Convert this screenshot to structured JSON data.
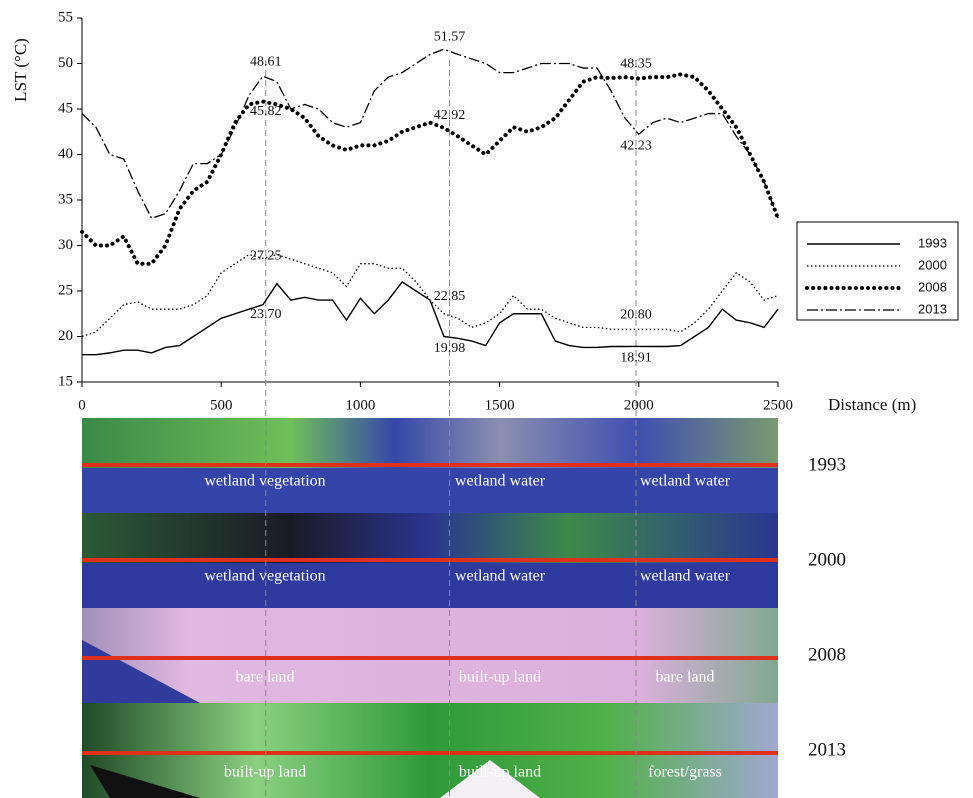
{
  "chart_data": {
    "type": "line",
    "y_label": "LST (°C)",
    "x_label": "Distance (m)",
    "x": [
      0,
      50,
      100,
      150,
      200,
      250,
      300,
      350,
      400,
      450,
      500,
      550,
      600,
      650,
      700,
      750,
      800,
      850,
      900,
      950,
      1000,
      1050,
      1100,
      1150,
      1200,
      1250,
      1300,
      1350,
      1400,
      1450,
      1500,
      1550,
      1600,
      1650,
      1700,
      1750,
      1800,
      1850,
      1900,
      1950,
      2000,
      2050,
      2100,
      2150,
      2200,
      2250,
      2300,
      2350,
      2400,
      2450,
      2500
    ],
    "series": [
      {
        "name": "1993",
        "color": "#000000",
        "values": [
          18,
          18,
          18.2,
          18.5,
          18.5,
          18.2,
          18.8,
          19,
          20,
          21,
          22,
          22.5,
          23,
          23.5,
          25.8,
          24,
          24.3,
          24,
          24,
          21.8,
          24.2,
          22.5,
          24,
          26,
          25,
          24,
          20,
          19.8,
          19.5,
          19,
          21.5,
          22.5,
          22.5,
          22.5,
          19.5,
          19,
          18.8,
          18.8,
          18.9,
          18.9,
          18.91,
          18.9,
          18.9,
          19,
          20,
          21,
          23,
          21.8,
          21.5,
          21,
          23
        ]
      },
      {
        "name": "2000",
        "color": "#000000",
        "values": [
          20,
          20.5,
          22,
          23.5,
          23.8,
          23,
          23,
          23,
          23.5,
          24.5,
          27,
          28,
          29,
          28.6,
          29,
          28.5,
          28,
          27.5,
          27,
          25.5,
          28,
          28,
          27.5,
          27.5,
          26,
          24,
          22.5,
          22,
          21,
          21.5,
          22.5,
          24.5,
          23,
          23,
          22,
          21.5,
          21,
          21,
          20.8,
          20.8,
          20.8,
          20.8,
          20.8,
          20.5,
          21.5,
          23,
          25,
          27,
          26,
          24,
          24.5
        ]
      },
      {
        "name": "2008",
        "color": "#000000",
        "values": [
          31.5,
          30,
          30,
          31,
          28,
          28,
          30,
          34,
          36,
          37,
          40,
          43.5,
          45.5,
          45.82,
          45.5,
          45,
          44,
          42,
          41,
          40.5,
          41,
          41,
          41.5,
          42.5,
          43,
          43.5,
          42.92,
          42,
          41,
          40,
          41.5,
          43,
          42.5,
          43,
          44,
          46,
          48,
          48.5,
          48.4,
          48.5,
          48.35,
          48.5,
          48.5,
          48.8,
          48.5,
          47,
          45,
          43,
          40,
          37,
          33
        ]
      },
      {
        "name": "2013",
        "color": "#000000",
        "values": [
          44.5,
          43,
          40,
          39.5,
          36,
          33,
          33.5,
          36,
          39,
          39,
          40,
          43,
          46.5,
          48.61,
          48,
          45,
          45.5,
          45,
          43.5,
          43,
          43.5,
          47,
          48.5,
          49,
          50,
          51,
          51.57,
          51,
          50.5,
          50,
          49,
          49,
          49.5,
          50,
          50,
          50,
          49.5,
          49.5,
          47,
          44,
          42.23,
          43.5,
          44,
          43.5,
          44,
          44.5,
          44.5,
          42,
          40,
          37,
          33
        ]
      }
    ],
    "annotations": [
      {
        "x": 660,
        "value": 48.61
      },
      {
        "x": 660,
        "value": 45.82
      },
      {
        "x": 660,
        "value": 27.25
      },
      {
        "x": 660,
        "value": 23.7,
        "label": "23.70"
      },
      {
        "x": 1320,
        "value": 51.57
      },
      {
        "x": 1320,
        "value": 42.92
      },
      {
        "x": 1320,
        "value": 22.85
      },
      {
        "x": 1320,
        "value": 19.98
      },
      {
        "x": 1990,
        "value": 48.35
      },
      {
        "x": 1990,
        "value": 42.23
      },
      {
        "x": 1990,
        "value": 20.8,
        "label": "20.80"
      },
      {
        "x": 1990,
        "value": 18.91
      }
    ],
    "reference_lines_x": [
      660,
      1320,
      1990
    ],
    "xlim": [
      0,
      2500
    ],
    "xticks": [
      0,
      500,
      1000,
      1500,
      2000,
      2500
    ],
    "ylim": [
      15,
      55
    ],
    "yticks": [
      15,
      20,
      25,
      30,
      35,
      40,
      45,
      50,
      55
    ],
    "legend": "right",
    "strips": [
      {
        "year": "1993",
        "labels": [
          "wetland vegetation",
          "wetland water",
          "wetland water"
        ]
      },
      {
        "year": "2000",
        "labels": [
          "wetland vegetation",
          "wetland water",
          "wetland water"
        ]
      },
      {
        "year": "2008",
        "labels": [
          "bare land",
          "built-up land",
          "bare land"
        ]
      },
      {
        "year": "2013",
        "labels": [
          "built-up land",
          "built-up land",
          "forest/grass"
        ]
      }
    ]
  }
}
